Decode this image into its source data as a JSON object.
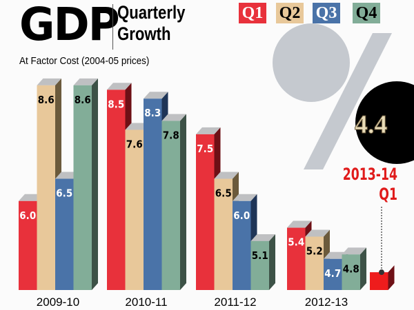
{
  "header": {
    "title": "GDP",
    "subtitle_line1": "Quarterly",
    "subtitle_line2": "Growth",
    "note": "At Factor Cost (2004-05 prices)"
  },
  "legend": [
    {
      "label": "Q1",
      "color": "#e8313b",
      "text_color": "#ffffff"
    },
    {
      "label": "Q2",
      "color": "#e8c89a",
      "text_color": "#000000"
    },
    {
      "label": "Q3",
      "color": "#4a73a8",
      "text_color": "#ffffff"
    },
    {
      "label": "Q4",
      "color": "#82ad98",
      "text_color": "#000000"
    }
  ],
  "highlight": {
    "value": "4.4",
    "symbol": "%",
    "period": "2013-14",
    "quarter": "Q1"
  },
  "chart_data": {
    "type": "bar",
    "title": "GDP Quarterly Growth",
    "subtitle": "At Factor Cost (2004-05 prices)",
    "categories": [
      "2009-10",
      "2010-11",
      "2011-12",
      "2012-13"
    ],
    "series": [
      {
        "name": "Q1",
        "values": [
          6.0,
          8.5,
          7.5,
          5.4
        ]
      },
      {
        "name": "Q2",
        "values": [
          8.6,
          7.6,
          6.5,
          5.2
        ]
      },
      {
        "name": "Q3",
        "values": [
          6.5,
          8.3,
          6.0,
          4.7
        ]
      },
      {
        "name": "Q4",
        "values": [
          8.6,
          7.8,
          5.1,
          4.8
        ]
      }
    ],
    "extra_point": {
      "category": "2013-14",
      "series": "Q1",
      "value": 4.4
    },
    "ylim": [
      4,
      8.8
    ],
    "grid": false,
    "legend": "top-right"
  }
}
